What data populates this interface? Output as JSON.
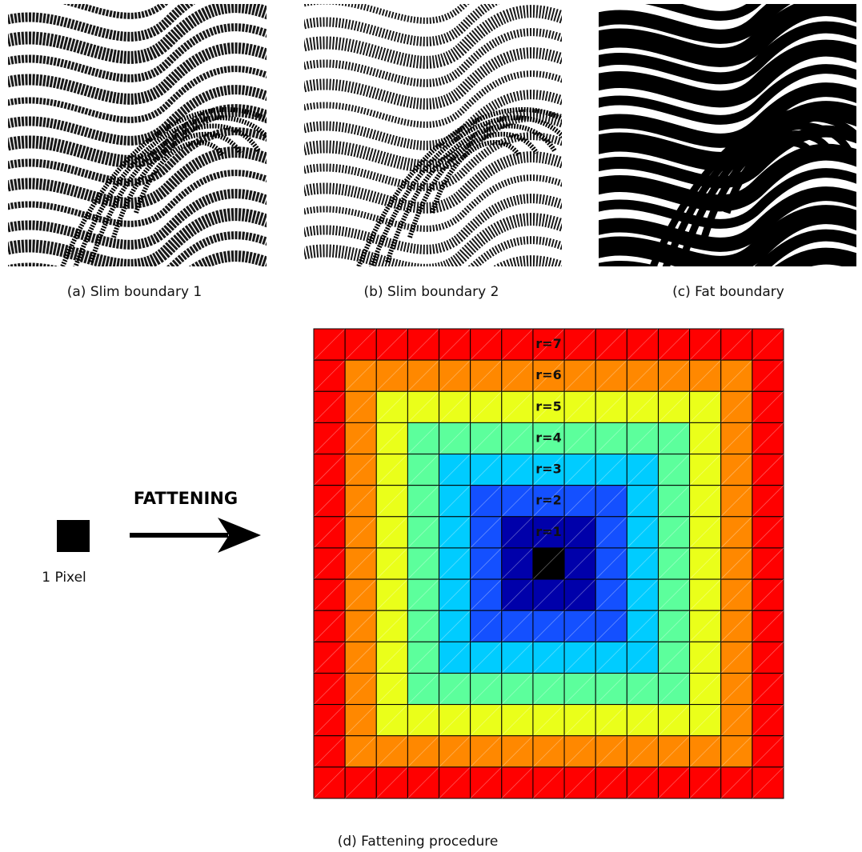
{
  "panels": [
    {
      "caption": "(a) Slim boundary 1"
    },
    {
      "caption": "(b) Slim boundary 2"
    },
    {
      "caption": "(c) Fat boundary"
    }
  ],
  "diagram": {
    "title": "FATTENING",
    "pixel_label": "1 Pixel",
    "radius_labels": [
      "r=1",
      "r=2",
      "r=3",
      "r=4",
      "r=5",
      "r=6",
      "r=7"
    ],
    "caption": "(d) Fattening procedure"
  }
}
